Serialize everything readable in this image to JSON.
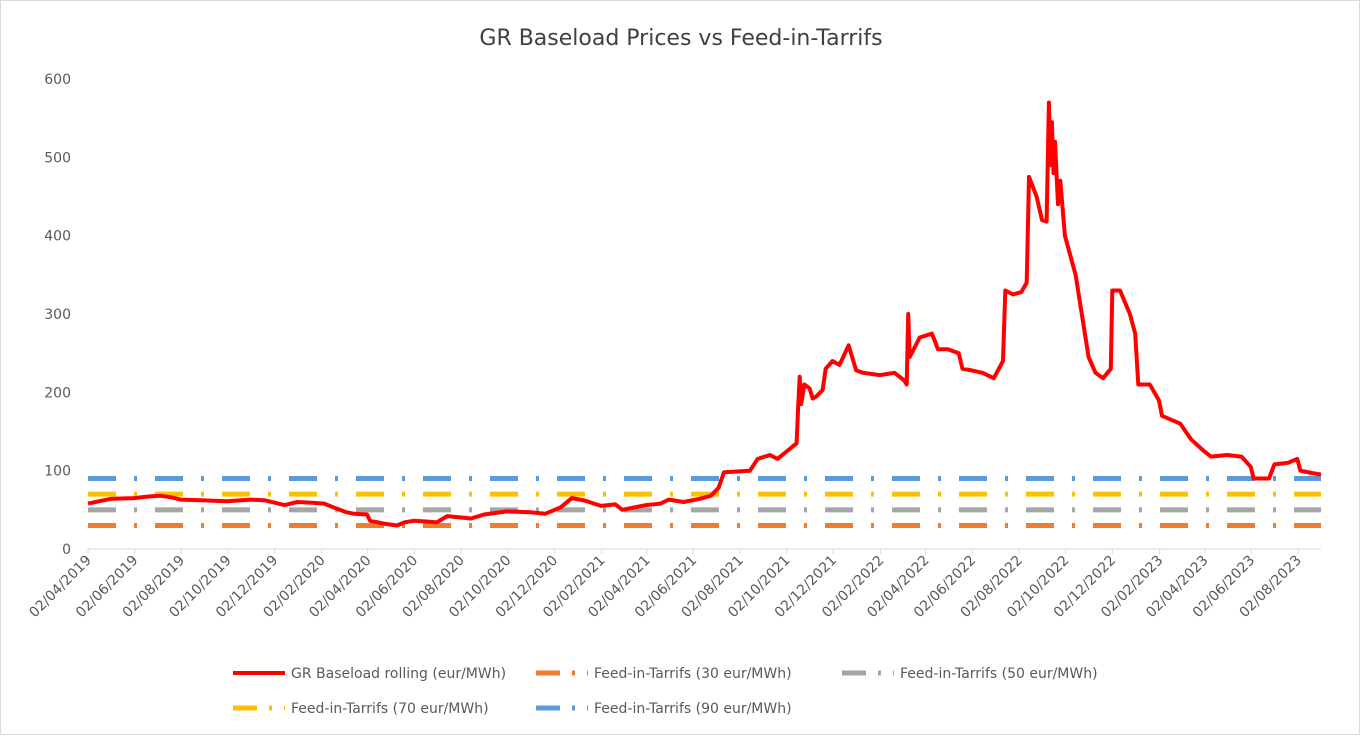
{
  "chart_data": {
    "type": "line",
    "title": "GR Baseload Prices vs Feed-in-Tarrifs",
    "xlabel": "",
    "ylabel": "",
    "ylim": [
      0,
      600
    ],
    "yticks": [
      "0",
      "100",
      "200",
      "300",
      "400",
      "500",
      "600"
    ],
    "x_range": [
      "2019-04-02",
      "2023-09-01"
    ],
    "x_tick_labels": [
      "02/04/2019",
      "02/06/2019",
      "02/08/2019",
      "02/10/2019",
      "02/12/2019",
      "02/02/2020",
      "02/04/2020",
      "02/06/2020",
      "02/08/2020",
      "02/10/2020",
      "02/12/2020",
      "02/02/2021",
      "02/04/2021",
      "02/06/2021",
      "02/08/2021",
      "02/10/2021",
      "02/12/2021",
      "02/02/2022",
      "02/04/2022",
      "02/06/2022",
      "02/08/2022",
      "02/10/2022",
      "02/12/2022",
      "02/02/2023",
      "02/04/2023",
      "02/06/2023",
      "02/08/2023"
    ],
    "x_tick_dates": [
      "2019-04-02",
      "2019-06-02",
      "2019-08-02",
      "2019-10-02",
      "2019-12-02",
      "2020-02-02",
      "2020-04-02",
      "2020-06-02",
      "2020-08-02",
      "2020-10-02",
      "2020-12-02",
      "2021-02-02",
      "2021-04-02",
      "2021-06-02",
      "2021-08-02",
      "2021-10-02",
      "2021-12-02",
      "2022-02-02",
      "2022-04-02",
      "2022-06-02",
      "2022-08-02",
      "2022-10-02",
      "2022-12-02",
      "2023-02-02",
      "2023-04-02",
      "2023-06-02",
      "2023-08-02"
    ],
    "grid": false,
    "legend_position": "bottom",
    "series": [
      {
        "name": "GR Baseload rolling (eur/MWh)",
        "color": "#ff0000",
        "style": "solid",
        "points": [
          [
            "2019-04-02",
            58
          ],
          [
            "2019-05-01",
            64
          ],
          [
            "2019-06-01",
            65
          ],
          [
            "2019-06-20",
            67
          ],
          [
            "2019-07-05",
            68
          ],
          [
            "2019-07-20",
            66
          ],
          [
            "2019-08-01",
            63
          ],
          [
            "2019-09-01",
            62
          ],
          [
            "2019-10-01",
            61
          ],
          [
            "2019-11-01",
            63
          ],
          [
            "2019-11-20",
            62
          ],
          [
            "2019-12-15",
            56
          ],
          [
            "2020-01-01",
            60
          ],
          [
            "2020-01-20",
            59
          ],
          [
            "2020-02-05",
            58
          ],
          [
            "2020-02-20",
            52
          ],
          [
            "2020-03-05",
            47
          ],
          [
            "2020-03-15",
            45
          ],
          [
            "2020-04-01",
            44
          ],
          [
            "2020-04-05",
            36
          ],
          [
            "2020-04-25",
            32
          ],
          [
            "2020-05-10",
            30
          ],
          [
            "2020-05-20",
            34
          ],
          [
            "2020-06-01",
            36
          ],
          [
            "2020-06-20",
            35
          ],
          [
            "2020-07-01",
            34
          ],
          [
            "2020-07-15",
            42
          ],
          [
            "2020-08-15",
            39
          ],
          [
            "2020-09-01",
            44
          ],
          [
            "2020-10-01",
            48
          ],
          [
            "2020-11-01",
            47
          ],
          [
            "2020-11-20",
            45
          ],
          [
            "2020-12-10",
            53
          ],
          [
            "2020-12-25",
            65
          ],
          [
            "2021-01-10",
            62
          ],
          [
            "2021-02-01",
            55
          ],
          [
            "2021-02-20",
            57
          ],
          [
            "2021-03-01",
            50
          ],
          [
            "2021-04-01",
            56
          ],
          [
            "2021-04-20",
            58
          ],
          [
            "2021-05-01",
            63
          ],
          [
            "2021-05-20",
            60
          ],
          [
            "2021-06-10",
            64
          ],
          [
            "2021-06-25",
            68
          ],
          [
            "2021-07-05",
            78
          ],
          [
            "2021-07-12",
            98
          ],
          [
            "2021-08-15",
            100
          ],
          [
            "2021-08-25",
            115
          ],
          [
            "2021-09-10",
            120
          ],
          [
            "2021-09-20",
            115
          ],
          [
            "2021-10-05",
            127
          ],
          [
            "2021-10-15",
            135
          ],
          [
            "2021-10-17",
            180
          ],
          [
            "2021-10-19",
            220
          ],
          [
            "2021-10-21",
            185
          ],
          [
            "2021-10-25",
            210
          ],
          [
            "2021-11-01",
            205
          ],
          [
            "2021-11-05",
            192
          ],
          [
            "2021-11-10",
            195
          ],
          [
            "2021-11-18",
            203
          ],
          [
            "2021-11-22",
            230
          ],
          [
            "2021-12-01",
            240
          ],
          [
            "2021-12-10",
            235
          ],
          [
            "2021-12-15",
            245
          ],
          [
            "2021-12-22",
            260
          ],
          [
            "2022-01-01",
            228
          ],
          [
            "2022-01-10",
            225
          ],
          [
            "2022-02-01",
            222
          ],
          [
            "2022-02-20",
            225
          ],
          [
            "2022-03-05",
            215
          ],
          [
            "2022-03-08",
            210
          ],
          [
            "2022-03-10",
            300
          ],
          [
            "2022-03-12",
            245
          ],
          [
            "2022-03-25",
            270
          ],
          [
            "2022-04-10",
            275
          ],
          [
            "2022-04-14",
            265
          ],
          [
            "2022-04-18",
            255
          ],
          [
            "2022-05-01",
            255
          ],
          [
            "2022-05-15",
            250
          ],
          [
            "2022-05-20",
            230
          ],
          [
            "2022-06-01",
            228
          ],
          [
            "2022-06-15",
            225
          ],
          [
            "2022-06-30",
            218
          ],
          [
            "2022-07-12",
            240
          ],
          [
            "2022-07-15",
            330
          ],
          [
            "2022-07-25",
            325
          ],
          [
            "2022-08-05",
            328
          ],
          [
            "2022-08-12",
            340
          ],
          [
            "2022-08-15",
            475
          ],
          [
            "2022-08-25",
            450
          ],
          [
            "2022-09-01",
            420
          ],
          [
            "2022-09-07",
            418
          ],
          [
            "2022-09-10",
            570
          ],
          [
            "2022-09-12",
            490
          ],
          [
            "2022-09-14",
            545
          ],
          [
            "2022-09-16",
            480
          ],
          [
            "2022-09-18",
            520
          ],
          [
            "2022-09-22",
            440
          ],
          [
            "2022-09-25",
            470
          ],
          [
            "2022-10-01",
            400
          ],
          [
            "2022-10-15",
            350
          ],
          [
            "2022-11-01",
            245
          ],
          [
            "2022-11-10",
            225
          ],
          [
            "2022-11-20",
            218
          ],
          [
            "2022-11-30",
            230
          ],
          [
            "2022-12-02",
            330
          ],
          [
            "2022-12-12",
            330
          ],
          [
            "2022-12-25",
            300
          ],
          [
            "2023-01-01",
            275
          ],
          [
            "2023-01-05",
            210
          ],
          [
            "2023-01-20",
            210
          ],
          [
            "2023-02-01",
            190
          ],
          [
            "2023-02-05",
            170
          ],
          [
            "2023-03-01",
            160
          ],
          [
            "2023-03-15",
            140
          ],
          [
            "2023-04-01",
            125
          ],
          [
            "2023-04-10",
            118
          ],
          [
            "2023-05-01",
            120
          ],
          [
            "2023-05-20",
            118
          ],
          [
            "2023-06-01",
            105
          ],
          [
            "2023-06-05",
            90
          ],
          [
            "2023-06-25",
            90
          ],
          [
            "2023-07-02",
            108
          ],
          [
            "2023-07-20",
            110
          ],
          [
            "2023-08-01",
            115
          ],
          [
            "2023-08-05",
            100
          ],
          [
            "2023-08-20",
            97
          ],
          [
            "2023-09-01",
            95
          ]
        ]
      },
      {
        "name": "Feed-in-Tarrifs (30 eur/MWh)",
        "color": "#ed7d31",
        "style": "long-dash-dot",
        "value": 30
      },
      {
        "name": "Feed-in-Tarrifs (50 eur/MWh)",
        "color": "#a5a5a5",
        "style": "long-dash-dot",
        "value": 50
      },
      {
        "name": "Feed-in-Tarrifs (70 eur/MWh)",
        "color": "#ffc000",
        "style": "long-dash-dot",
        "value": 70
      },
      {
        "name": "Feed-in-Tarrifs (90 eur/MWh)",
        "color": "#5b9bd5",
        "style": "long-dash-dot",
        "value": 90
      }
    ]
  }
}
